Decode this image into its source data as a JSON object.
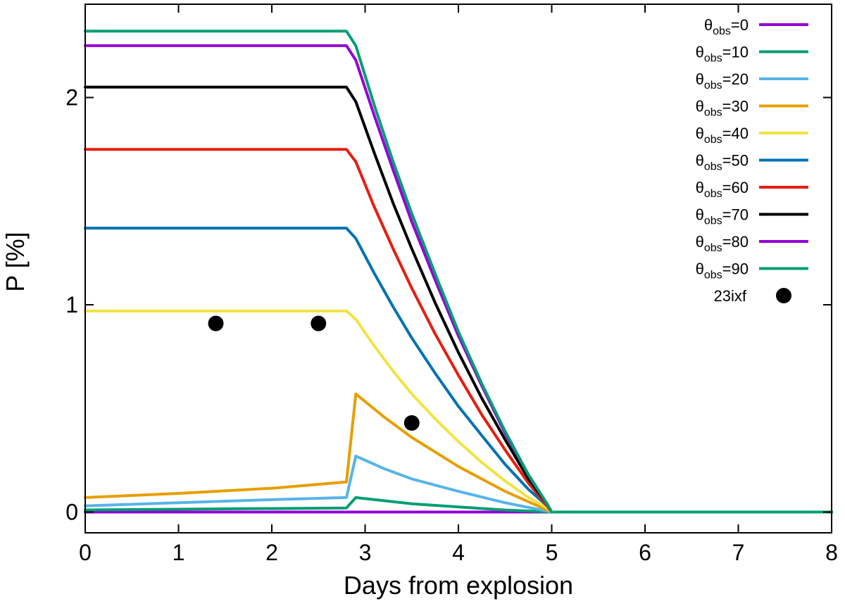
{
  "chart_data": {
    "type": "line",
    "title": "",
    "xlabel": "Days from explosion",
    "ylabel": "P [%]",
    "xlim": [
      0,
      8
    ],
    "ylim": [
      -0.1,
      2.45
    ],
    "xticks": [
      0,
      1,
      2,
      3,
      4,
      5,
      6,
      7,
      8
    ],
    "yticks": [
      0,
      1,
      2
    ],
    "grid": false,
    "legend_position": "top-right",
    "series": [
      {
        "name": "θobs=0",
        "label_base": "θ",
        "label_sub": "obs",
        "label_val": "=0",
        "color": "#9400d3",
        "points": [
          [
            0,
            0
          ],
          [
            2.8,
            0
          ],
          [
            2.9,
            0
          ],
          [
            5,
            0
          ],
          [
            8,
            0
          ]
        ]
      },
      {
        "name": "θobs=10",
        "label_base": "θ",
        "label_sub": "obs",
        "label_val": "=10",
        "color": "#009e73",
        "points": [
          [
            0,
            0.01
          ],
          [
            2.8,
            0.02
          ],
          [
            2.9,
            0.07
          ],
          [
            3.5,
            0.04
          ],
          [
            4,
            0.025
          ],
          [
            4.5,
            0.01
          ],
          [
            5,
            0
          ],
          [
            8,
            0
          ]
        ]
      },
      {
        "name": "θobs=20",
        "label_base": "θ",
        "label_sub": "obs",
        "label_val": "=20",
        "color": "#56b4e9",
        "points": [
          [
            0,
            0.03
          ],
          [
            1,
            0.045
          ],
          [
            2,
            0.06
          ],
          [
            2.8,
            0.07
          ],
          [
            2.9,
            0.27
          ],
          [
            3.2,
            0.21
          ],
          [
            3.5,
            0.16
          ],
          [
            4,
            0.1
          ],
          [
            4.5,
            0.045
          ],
          [
            5,
            0
          ],
          [
            8,
            0
          ]
        ]
      },
      {
        "name": "θobs=30",
        "label_base": "θ",
        "label_sub": "obs",
        "label_val": "=30",
        "color": "#e69f00",
        "points": [
          [
            0,
            0.07
          ],
          [
            1,
            0.09
          ],
          [
            2,
            0.115
          ],
          [
            2.8,
            0.145
          ],
          [
            2.9,
            0.57
          ],
          [
            3.2,
            0.46
          ],
          [
            3.5,
            0.36
          ],
          [
            4,
            0.22
          ],
          [
            4.5,
            0.1
          ],
          [
            5,
            0
          ],
          [
            8,
            0
          ]
        ]
      },
      {
        "name": "θobs=40",
        "label_base": "θ",
        "label_sub": "obs",
        "label_val": "=40",
        "color": "#f0e442",
        "points": [
          [
            0,
            0.97
          ],
          [
            2.8,
            0.97
          ],
          [
            2.9,
            0.93
          ],
          [
            3.1,
            0.8
          ],
          [
            3.3,
            0.68
          ],
          [
            3.5,
            0.57
          ],
          [
            3.75,
            0.45
          ],
          [
            4,
            0.34
          ],
          [
            4.25,
            0.24
          ],
          [
            4.5,
            0.15
          ],
          [
            4.75,
            0.07
          ],
          [
            4.95,
            0.02
          ],
          [
            5,
            0
          ],
          [
            8,
            0
          ]
        ]
      },
      {
        "name": "θobs=50",
        "label_base": "θ",
        "label_sub": "obs",
        "label_val": "=50",
        "color": "#0072b2",
        "points": [
          [
            0,
            1.37
          ],
          [
            2.8,
            1.37
          ],
          [
            2.9,
            1.32
          ],
          [
            3.1,
            1.15
          ],
          [
            3.3,
            0.99
          ],
          [
            3.5,
            0.84
          ],
          [
            3.75,
            0.67
          ],
          [
            4,
            0.51
          ],
          [
            4.25,
            0.37
          ],
          [
            4.5,
            0.23
          ],
          [
            4.75,
            0.11
          ],
          [
            4.95,
            0.03
          ],
          [
            5,
            0
          ],
          [
            8,
            0
          ]
        ]
      },
      {
        "name": "θobs=60",
        "label_base": "θ",
        "label_sub": "obs",
        "label_val": "=60",
        "color": "#e51e10",
        "points": [
          [
            0,
            1.75
          ],
          [
            2.8,
            1.75
          ],
          [
            2.9,
            1.69
          ],
          [
            3.1,
            1.47
          ],
          [
            3.3,
            1.27
          ],
          [
            3.5,
            1.08
          ],
          [
            3.75,
            0.86
          ],
          [
            4,
            0.66
          ],
          [
            4.25,
            0.47
          ],
          [
            4.5,
            0.3
          ],
          [
            4.75,
            0.14
          ],
          [
            4.95,
            0.03
          ],
          [
            5,
            0
          ],
          [
            8,
            0
          ]
        ]
      },
      {
        "name": "θobs=70",
        "label_base": "θ",
        "label_sub": "obs",
        "label_val": "=70",
        "color": "#000000",
        "points": [
          [
            0,
            2.05
          ],
          [
            2.8,
            2.05
          ],
          [
            2.9,
            1.98
          ],
          [
            3.1,
            1.73
          ],
          [
            3.3,
            1.49
          ],
          [
            3.5,
            1.27
          ],
          [
            3.75,
            1.01
          ],
          [
            4,
            0.77
          ],
          [
            4.25,
            0.55
          ],
          [
            4.5,
            0.35
          ],
          [
            4.75,
            0.16
          ],
          [
            4.95,
            0.04
          ],
          [
            5,
            0
          ],
          [
            8,
            0
          ]
        ]
      },
      {
        "name": "θobs=80",
        "label_base": "θ",
        "label_sub": "obs",
        "label_val": "=80",
        "color": "#9400d3",
        "points": [
          [
            0,
            2.25
          ],
          [
            2.8,
            2.25
          ],
          [
            2.9,
            2.18
          ],
          [
            3.1,
            1.91
          ],
          [
            3.3,
            1.65
          ],
          [
            3.5,
            1.4
          ],
          [
            3.75,
            1.12
          ],
          [
            4,
            0.85
          ],
          [
            4.25,
            0.61
          ],
          [
            4.5,
            0.38
          ],
          [
            4.75,
            0.18
          ],
          [
            4.95,
            0.04
          ],
          [
            5,
            0
          ],
          [
            8,
            0
          ]
        ]
      },
      {
        "name": "θobs=90",
        "label_base": "θ",
        "label_sub": "obs",
        "label_val": "=90",
        "color": "#009e73",
        "points": [
          [
            0,
            2.32
          ],
          [
            2.8,
            2.32
          ],
          [
            2.9,
            2.25
          ],
          [
            3.1,
            1.96
          ],
          [
            3.3,
            1.69
          ],
          [
            3.5,
            1.44
          ],
          [
            3.75,
            1.15
          ],
          [
            4,
            0.87
          ],
          [
            4.25,
            0.62
          ],
          [
            4.5,
            0.39
          ],
          [
            4.75,
            0.18
          ],
          [
            4.95,
            0.04
          ],
          [
            5,
            0
          ],
          [
            8,
            0
          ]
        ]
      }
    ],
    "observations": {
      "name": "23ixf",
      "color": "#000000",
      "points": [
        [
          1.4,
          0.91
        ],
        [
          2.5,
          0.91
        ],
        [
          3.5,
          0.43
        ]
      ]
    }
  }
}
